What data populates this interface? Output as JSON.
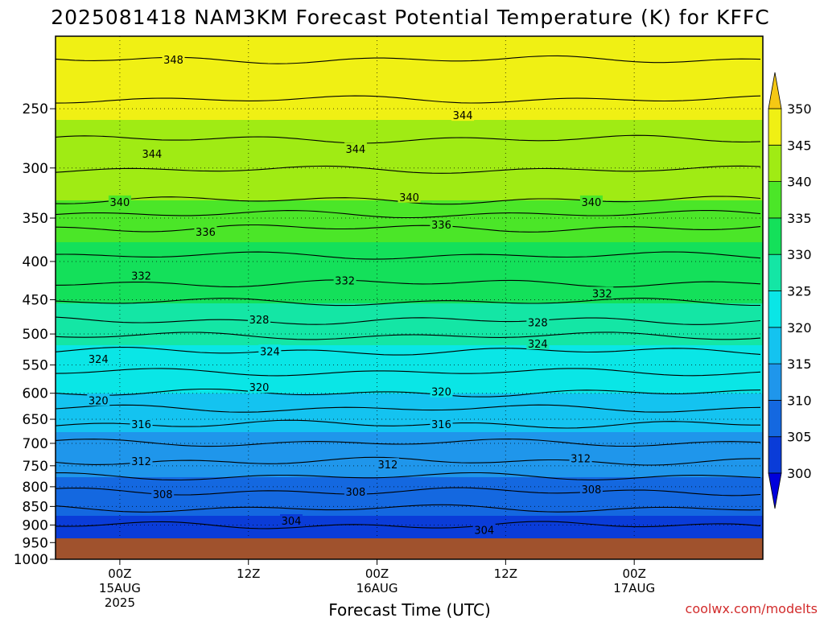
{
  "chart_data": {
    "type": "heatmap",
    "title": "2025081418 NAM3KM Forecast Potential Temperature (K) for KFFC",
    "xlabel": "Forecast Time (UTC)",
    "ylabel": "",
    "credit": "coolwx.com/modelts",
    "y_scale": "log-pressure",
    "y_range": [
      1000,
      200
    ],
    "y_ticks": [
      250,
      300,
      350,
      400,
      450,
      500,
      550,
      600,
      650,
      700,
      750,
      800,
      850,
      900,
      950,
      1000
    ],
    "x_range": [
      "2025-08-14T18Z",
      "2025-08-17T12Z"
    ],
    "x_ticks": [
      {
        "time": "2025-08-15T00Z",
        "label": "00Z",
        "sublabel": "15AUG",
        "year": "2025"
      },
      {
        "time": "2025-08-15T12Z",
        "label": "12Z"
      },
      {
        "time": "2025-08-16T00Z",
        "label": "00Z",
        "sublabel": "16AUG"
      },
      {
        "time": "2025-08-16T12Z",
        "label": "12Z"
      },
      {
        "time": "2025-08-17T00Z",
        "label": "00Z",
        "sublabel": "17AUG"
      }
    ],
    "colorbar": {
      "ticks": [
        300,
        305,
        310,
        315,
        320,
        325,
        330,
        335,
        340,
        345,
        350
      ],
      "levels": [
        {
          "min": null,
          "max": 300,
          "color": "#0000dc"
        },
        {
          "min": 300,
          "max": 305,
          "color": "#0a3cd8"
        },
        {
          "min": 305,
          "max": 310,
          "color": "#1468e0"
        },
        {
          "min": 310,
          "max": 315,
          "color": "#1f96eb"
        },
        {
          "min": 315,
          "max": 320,
          "color": "#14c3f0"
        },
        {
          "min": 320,
          "max": 325,
          "color": "#0ae6e6"
        },
        {
          "min": 325,
          "max": 330,
          "color": "#14e6a5"
        },
        {
          "min": 330,
          "max": 335,
          "color": "#14e05a"
        },
        {
          "min": 335,
          "max": 340,
          "color": "#4be628"
        },
        {
          "min": 340,
          "max": 345,
          "color": "#a0eb14"
        },
        {
          "min": 345,
          "max": 350,
          "color": "#f0f014"
        },
        {
          "min": 350,
          "max": null,
          "color": "#f5c814"
        }
      ]
    },
    "ground_color": "#a0522d",
    "isentrope_labels": [
      {
        "time": "2025-08-15T05Z",
        "pressure": 215,
        "value": "348"
      },
      {
        "time": "2025-08-16T08Z",
        "pressure": 255,
        "value": "344"
      },
      {
        "time": "2025-08-15T03Z",
        "pressure": 287,
        "value": "344"
      },
      {
        "time": "2025-08-15T22Z",
        "pressure": 283,
        "value": "344"
      },
      {
        "time": "2025-08-15T00Z",
        "pressure": 333,
        "value": "340"
      },
      {
        "time": "2025-08-16T03Z",
        "pressure": 328,
        "value": "340"
      },
      {
        "time": "2025-08-16T20Z",
        "pressure": 333,
        "value": "340"
      },
      {
        "time": "2025-08-15T08Z",
        "pressure": 365,
        "value": "336"
      },
      {
        "time": "2025-08-16T06Z",
        "pressure": 357,
        "value": "336"
      },
      {
        "time": "2025-08-15T02Z",
        "pressure": 418,
        "value": "332"
      },
      {
        "time": "2025-08-15T21Z",
        "pressure": 424,
        "value": "332"
      },
      {
        "time": "2025-08-16T21Z",
        "pressure": 441,
        "value": "332"
      },
      {
        "time": "2025-08-15T13Z",
        "pressure": 478,
        "value": "328"
      },
      {
        "time": "2025-08-16T15Z",
        "pressure": 482,
        "value": "328"
      },
      {
        "time": "2025-08-14T22Z",
        "pressure": 540,
        "value": "324"
      },
      {
        "time": "2025-08-15T14Z",
        "pressure": 527,
        "value": "324"
      },
      {
        "time": "2025-08-16T15Z",
        "pressure": 515,
        "value": "324"
      },
      {
        "time": "2025-08-14T22Z",
        "pressure": 613,
        "value": "320"
      },
      {
        "time": "2025-08-15T13Z",
        "pressure": 589,
        "value": "320"
      },
      {
        "time": "2025-08-16T06Z",
        "pressure": 597,
        "value": "320"
      },
      {
        "time": "2025-08-15T02Z",
        "pressure": 660,
        "value": "316"
      },
      {
        "time": "2025-08-16T06Z",
        "pressure": 660,
        "value": "316"
      },
      {
        "time": "2025-08-15T02Z",
        "pressure": 739,
        "value": "312"
      },
      {
        "time": "2025-08-16T01Z",
        "pressure": 747,
        "value": "312"
      },
      {
        "time": "2025-08-16T19Z",
        "pressure": 733,
        "value": "312"
      },
      {
        "time": "2025-08-15T04Z",
        "pressure": 818,
        "value": "308"
      },
      {
        "time": "2025-08-15T22Z",
        "pressure": 812,
        "value": "308"
      },
      {
        "time": "2025-08-16T20Z",
        "pressure": 806,
        "value": "308"
      },
      {
        "time": "2025-08-15T16Z",
        "pressure": 888,
        "value": "304"
      },
      {
        "time": "2025-08-16T10Z",
        "pressure": 914,
        "value": "304"
      }
    ]
  }
}
